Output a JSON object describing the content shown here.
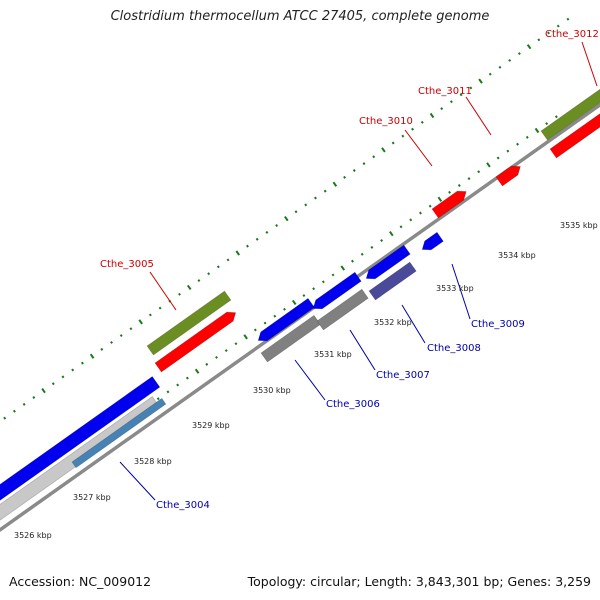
{
  "title": "Clostridium thermocellum ATCC 27405, complete genome",
  "footer": {
    "accession": "Accession: NC_009012",
    "summary": "Topology: circular; Length: 3,843,301 bp; Genes: 3,259"
  },
  "colors": {
    "forward_cds": "#ff0000",
    "forward_gene": "#6b8e23",
    "reverse_cds": "#0000ee",
    "reverse_gene": "#808080",
    "backbone": "#8a8a8a",
    "tick_dots": "#1a7a1a",
    "label_forward": "#cc0000",
    "label_reverse": "#0000aa"
  },
  "ticks": [
    "3526 kbp",
    "3527 kbp",
    "3528 kbp",
    "3529 kbp",
    "3530 kbp",
    "3531 kbp",
    "3532 kbp",
    "3533 kbp",
    "3534 kbp",
    "3535 kbp"
  ],
  "genes": [
    {
      "name": "Cthe_3004",
      "strand": "reverse"
    },
    {
      "name": "Cthe_3005",
      "strand": "forward"
    },
    {
      "name": "Cthe_3006",
      "strand": "reverse"
    },
    {
      "name": "Cthe_3007",
      "strand": "reverse"
    },
    {
      "name": "Cthe_3008",
      "strand": "reverse"
    },
    {
      "name": "Cthe_3009",
      "strand": "reverse"
    },
    {
      "name": "Cthe_3010",
      "strand": "forward"
    },
    {
      "name": "Cthe_3011",
      "strand": "forward"
    },
    {
      "name": "Cthe_3012",
      "strand": "forward"
    }
  ]
}
